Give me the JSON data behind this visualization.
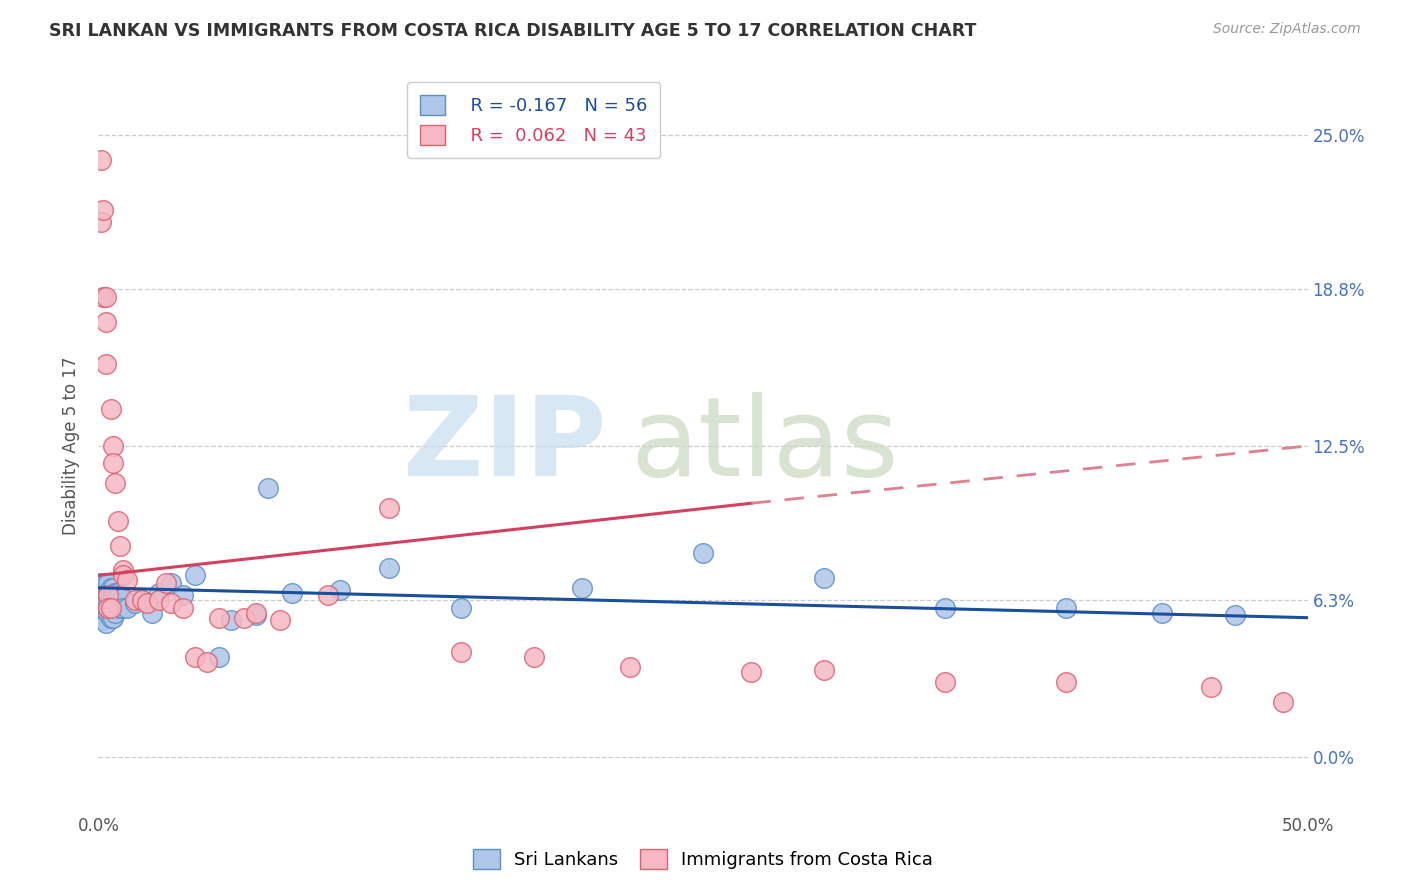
{
  "title": "SRI LANKAN VS IMMIGRANTS FROM COSTA RICA DISABILITY AGE 5 TO 17 CORRELATION CHART",
  "source": "Source: ZipAtlas.com",
  "ylabel": "Disability Age 5 to 17",
  "xlim": [
    0.0,
    0.5
  ],
  "ylim": [
    -0.022,
    0.272
  ],
  "ytick_vals": [
    0.0,
    0.063,
    0.125,
    0.188,
    0.25
  ],
  "ytick_labels_right": [
    "0.0%",
    "6.3%",
    "12.5%",
    "18.8%",
    "25.0%"
  ],
  "xtick_labels_show": [
    "0.0%",
    "",
    "",
    "",
    "",
    "50.0%"
  ],
  "sri_lanka_color": "#aec6e8",
  "sri_lanka_edge_color": "#5b8fc9",
  "costa_rica_color": "#f5b8c4",
  "costa_rica_edge_color": "#e06070",
  "sri_lanka_line_color": "#1a4f9c",
  "costa_rica_line_color": "#d44060",
  "costa_rica_dash_color": "#e08090",
  "right_axis_color": "#4472c4",
  "sri_lanka_x": [
    0.001,
    0.001,
    0.001,
    0.002,
    0.002,
    0.002,
    0.002,
    0.003,
    0.003,
    0.003,
    0.003,
    0.003,
    0.004,
    0.004,
    0.004,
    0.004,
    0.005,
    0.005,
    0.005,
    0.005,
    0.006,
    0.006,
    0.006,
    0.006,
    0.007,
    0.007,
    0.007,
    0.008,
    0.008,
    0.009,
    0.009,
    0.01,
    0.01,
    0.012,
    0.015,
    0.018,
    0.022,
    0.025,
    0.03,
    0.035,
    0.04,
    0.05,
    0.055,
    0.065,
    0.07,
    0.08,
    0.1,
    0.12,
    0.15,
    0.2,
    0.25,
    0.3,
    0.35,
    0.4,
    0.44,
    0.47
  ],
  "sri_lanka_y": [
    0.07,
    0.065,
    0.06,
    0.068,
    0.063,
    0.058,
    0.055,
    0.07,
    0.066,
    0.062,
    0.058,
    0.054,
    0.07,
    0.066,
    0.062,
    0.058,
    0.068,
    0.064,
    0.06,
    0.056,
    0.068,
    0.064,
    0.06,
    0.056,
    0.066,
    0.062,
    0.058,
    0.066,
    0.062,
    0.065,
    0.06,
    0.064,
    0.06,
    0.06,
    0.062,
    0.063,
    0.058,
    0.066,
    0.07,
    0.065,
    0.073,
    0.04,
    0.055,
    0.057,
    0.108,
    0.066,
    0.067,
    0.076,
    0.06,
    0.068,
    0.082,
    0.072,
    0.06,
    0.06,
    0.058,
    0.057
  ],
  "costa_rica_x": [
    0.001,
    0.001,
    0.002,
    0.002,
    0.003,
    0.003,
    0.003,
    0.004,
    0.004,
    0.005,
    0.005,
    0.006,
    0.006,
    0.007,
    0.008,
    0.009,
    0.01,
    0.01,
    0.012,
    0.015,
    0.018,
    0.02,
    0.025,
    0.028,
    0.03,
    0.035,
    0.04,
    0.045,
    0.05,
    0.06,
    0.065,
    0.075,
    0.095,
    0.12,
    0.15,
    0.18,
    0.22,
    0.27,
    0.3,
    0.35,
    0.4,
    0.46,
    0.49
  ],
  "costa_rica_y": [
    0.24,
    0.215,
    0.22,
    0.185,
    0.185,
    0.175,
    0.158,
    0.065,
    0.06,
    0.14,
    0.06,
    0.125,
    0.118,
    0.11,
    0.095,
    0.085,
    0.075,
    0.073,
    0.071,
    0.063,
    0.063,
    0.062,
    0.063,
    0.07,
    0.062,
    0.06,
    0.04,
    0.038,
    0.056,
    0.056,
    0.058,
    0.055,
    0.065,
    0.1,
    0.042,
    0.04,
    0.036,
    0.034,
    0.035,
    0.03,
    0.03,
    0.028,
    0.022
  ]
}
